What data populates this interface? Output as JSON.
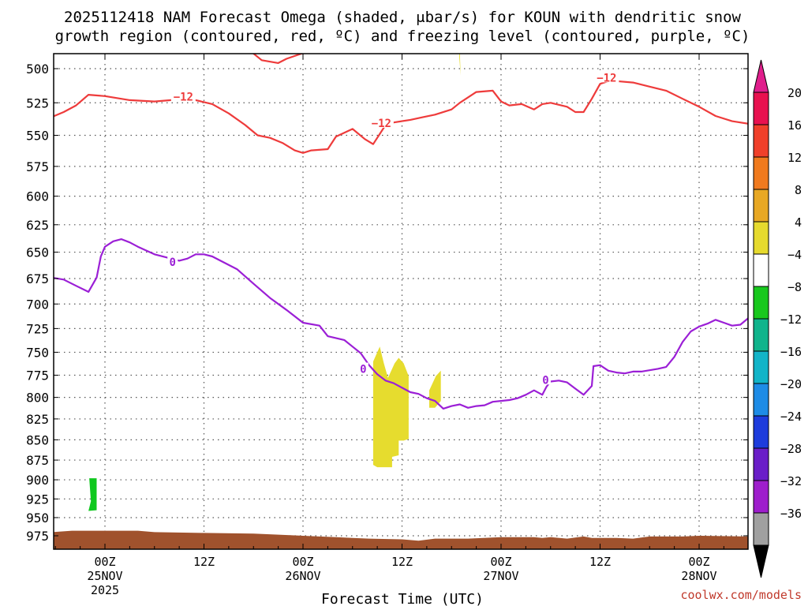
{
  "chart_data": {
    "type": "time-height contour",
    "title_lines": [
      "2025112418 NAM Forecast Omega (shaded, μbar/s) for KOUN with dendritic snow",
      "growth region (contoured, red, ºC) and freezing level (contoured, purple, ºC)"
    ],
    "xlabel": "Forecast Time (UTC)",
    "credit": "coolwx.com/models",
    "x_range_hours": [
      -6.5,
      78
    ],
    "y_range_hpa": [
      485,
      990
    ],
    "y_ticks": [
      {
        "v": 500,
        "label": "500"
      },
      {
        "v": 525,
        "label": "525"
      },
      {
        "v": 550,
        "label": "550"
      },
      {
        "v": 575,
        "label": "575"
      },
      {
        "v": 600,
        "label": "600"
      },
      {
        "v": 625,
        "label": "625"
      },
      {
        "v": 650,
        "label": "650"
      },
      {
        "v": 675,
        "label": "675"
      },
      {
        "v": 700,
        "label": "700"
      },
      {
        "v": 725,
        "label": "725"
      },
      {
        "v": 750,
        "label": "750"
      },
      {
        "v": 775,
        "label": "775"
      },
      {
        "v": 800,
        "label": "800"
      },
      {
        "v": 825,
        "label": "825"
      },
      {
        "v": 850,
        "label": "850"
      },
      {
        "v": 875,
        "label": "875"
      },
      {
        "v": 900,
        "label": "900"
      },
      {
        "v": 925,
        "label": "925"
      },
      {
        "v": 950,
        "label": "950"
      },
      {
        "v": 975,
        "label": "975"
      }
    ],
    "x_ticks": [
      {
        "t": 0,
        "label": "00Z",
        "date": "25NOV",
        "year": "2025"
      },
      {
        "t": 12,
        "label": "12Z",
        "date": "",
        "year": ""
      },
      {
        "t": 24,
        "label": "00Z",
        "date": "26NOV",
        "year": ""
      },
      {
        "t": 36,
        "label": "12Z",
        "date": "",
        "year": ""
      },
      {
        "t": 48,
        "label": "00Z",
        "date": "27NOV",
        "year": ""
      },
      {
        "t": 60,
        "label": "12Z",
        "date": "",
        "year": ""
      },
      {
        "t": 72,
        "label": "00Z",
        "date": "28NOV",
        "year": ""
      }
    ],
    "colorbar": {
      "levels": [
        -36,
        -32,
        -28,
        -24,
        -20,
        -16,
        -12,
        -8,
        -4,
        4,
        8,
        12,
        16,
        20
      ],
      "labels": [
        "20",
        "16",
        "12",
        "8",
        "4",
        "−4",
        "−8",
        "−12",
        "−16",
        "−20",
        "−24",
        "−28",
        "−32",
        "−36"
      ],
      "colors_top_to_bottom": [
        "#e8114f",
        "#f0402a",
        "#f07a1e",
        "#e8a824",
        "#e6da2e",
        "#ffffff",
        "#18c81e",
        "#10b48c",
        "#12b4c8",
        "#1e8ce6",
        "#1e3cdc",
        "#6a1ec8",
        "#9e1ecc",
        "#a0a0a0"
      ],
      "top_triangle": "#e01e8c",
      "bottom_triangle": "#000000"
    },
    "contours": [
      {
        "name": "dgz-upper",
        "level": "-12",
        "color": "#ee3b3b",
        "points": [
          [
            -6.5,
            536
          ],
          [
            -5,
            532
          ],
          [
            -3.5,
            527
          ],
          [
            -2,
            519
          ],
          [
            0,
            520
          ],
          [
            3,
            523
          ],
          [
            6,
            524
          ],
          [
            8,
            523
          ],
          [
            9,
            521
          ],
          [
            11,
            523
          ],
          [
            13,
            526
          ],
          [
            15,
            533
          ],
          [
            17,
            542
          ],
          [
            18.5,
            550
          ],
          [
            20,
            552
          ],
          [
            21.5,
            556
          ],
          [
            23,
            562
          ],
          [
            24,
            564
          ],
          [
            25,
            562
          ],
          [
            27,
            561
          ],
          [
            28,
            551
          ],
          [
            30,
            545
          ],
          [
            31.5,
            553
          ],
          [
            32.5,
            557
          ],
          [
            33,
            552
          ],
          [
            34,
            542
          ],
          [
            35,
            540
          ],
          [
            37,
            538
          ],
          [
            38.5,
            536
          ],
          [
            40,
            534
          ],
          [
            42,
            530
          ],
          [
            43,
            525
          ],
          [
            45,
            517
          ],
          [
            47,
            516
          ],
          [
            48,
            524
          ],
          [
            49,
            527
          ],
          [
            50.5,
            526
          ],
          [
            52,
            530
          ],
          [
            53,
            526
          ],
          [
            54,
            525
          ],
          [
            56,
            528
          ],
          [
            57,
            532
          ],
          [
            58,
            532
          ],
          [
            59,
            522
          ],
          [
            60,
            511
          ],
          [
            61,
            509
          ],
          [
            62,
            509
          ],
          [
            64,
            510
          ],
          [
            66,
            513
          ],
          [
            68,
            516
          ],
          [
            70,
            522
          ],
          [
            72,
            528
          ],
          [
            74,
            535
          ],
          [
            76,
            539
          ],
          [
            78,
            541
          ]
        ]
      },
      {
        "name": "dgz-top",
        "level": "-12",
        "color": "#ee3b3b",
        "points": [
          [
            17.5,
            487
          ],
          [
            19,
            494
          ],
          [
            21,
            496
          ],
          [
            22,
            493
          ],
          [
            24,
            489
          ],
          [
            27,
            489
          ],
          [
            30,
            487
          ]
        ]
      },
      {
        "name": "freezing-level",
        "level": "0",
        "color": "#9b1fd6",
        "points": [
          [
            -6.5,
            674
          ],
          [
            -5,
            676
          ],
          [
            -3.5,
            682
          ],
          [
            -2,
            688
          ],
          [
            -1,
            674
          ],
          [
            -0.5,
            654
          ],
          [
            0,
            645
          ],
          [
            1,
            640
          ],
          [
            2,
            638
          ],
          [
            3,
            641
          ],
          [
            4,
            645
          ],
          [
            6,
            652
          ],
          [
            8,
            656
          ],
          [
            9,
            658
          ],
          [
            10,
            656
          ],
          [
            11,
            652
          ],
          [
            12,
            652
          ],
          [
            13,
            654
          ],
          [
            14,
            658
          ],
          [
            16,
            666
          ],
          [
            18,
            680
          ],
          [
            20,
            694
          ],
          [
            22,
            706
          ],
          [
            24,
            719
          ],
          [
            26,
            722
          ],
          [
            27,
            733
          ],
          [
            29,
            737
          ],
          [
            30,
            744
          ],
          [
            31,
            751
          ],
          [
            32,
            764
          ],
          [
            33,
            774
          ],
          [
            34,
            781
          ],
          [
            35,
            784
          ],
          [
            36,
            789
          ],
          [
            37,
            794
          ],
          [
            38,
            796
          ],
          [
            39,
            801
          ],
          [
            40,
            804
          ],
          [
            41,
            813
          ],
          [
            42,
            810
          ],
          [
            43,
            808
          ],
          [
            44,
            812
          ],
          [
            45,
            810
          ],
          [
            46,
            809
          ],
          [
            47,
            805
          ],
          [
            49,
            803
          ],
          [
            50,
            801
          ],
          [
            51,
            797
          ],
          [
            52,
            792
          ],
          [
            53,
            797
          ],
          [
            53.5,
            788
          ],
          [
            54,
            782
          ],
          [
            55,
            781
          ],
          [
            56,
            783
          ],
          [
            57,
            790
          ],
          [
            58,
            797
          ],
          [
            59,
            787
          ],
          [
            59.2,
            765
          ],
          [
            60,
            764
          ],
          [
            61,
            770
          ],
          [
            62,
            772
          ],
          [
            63,
            773
          ],
          [
            64,
            771
          ],
          [
            65,
            771
          ],
          [
            67,
            768
          ],
          [
            68,
            766
          ],
          [
            69,
            755
          ],
          [
            70,
            739
          ],
          [
            71,
            728
          ],
          [
            72,
            723
          ],
          [
            73,
            720
          ],
          [
            74,
            716
          ],
          [
            75,
            719
          ],
          [
            76,
            722
          ],
          [
            77,
            721
          ],
          [
            78,
            714
          ]
        ]
      }
    ],
    "contour_labels": [
      {
        "text": "−12",
        "t": 9.5,
        "p": 521,
        "color": "#ee3b3b"
      },
      {
        "text": "−12",
        "t": 33.5,
        "p": 541,
        "color": "#ee3b3b"
      },
      {
        "text": "−12",
        "t": 60.8,
        "p": 507,
        "color": "#ee3b3b"
      },
      {
        "text": "0",
        "t": 8.2,
        "p": 660,
        "color": "#9b1fd6"
      },
      {
        "text": "0",
        "t": 31.3,
        "p": 769,
        "color": "#9b1fd6"
      },
      {
        "text": "0",
        "t": 53.4,
        "p": 781,
        "color": "#9b1fd6"
      }
    ],
    "shaded_regions": [
      {
        "name": "omega-4-to-8",
        "level": "4 to 8",
        "color": "#e6dc2e",
        "points": [
          [
            32.5,
            760
          ],
          [
            33.3,
            744
          ],
          [
            33.8,
            762
          ],
          [
            34.3,
            778
          ],
          [
            35.1,
            762
          ],
          [
            35.6,
            756
          ],
          [
            36.2,
            762
          ],
          [
            36.8,
            776
          ],
          [
            36.8,
            849
          ],
          [
            36.2,
            851
          ],
          [
            35.6,
            851
          ],
          [
            35.6,
            869
          ],
          [
            34.8,
            871
          ],
          [
            34.8,
            884
          ],
          [
            33.0,
            884
          ],
          [
            32.5,
            881
          ]
        ]
      },
      {
        "name": "omega-4-to-8-b",
        "level": "4 to 8",
        "color": "#e6dc2e",
        "points": [
          [
            39.3,
            792
          ],
          [
            40.1,
            776
          ],
          [
            40.7,
            770
          ],
          [
            40.7,
            804
          ],
          [
            40.0,
            812
          ],
          [
            39.3,
            812
          ]
        ]
      },
      {
        "name": "omega-4-to-8-c",
        "level": "4 to 8",
        "color": "#e6dc2e",
        "points": [
          [
            42.9,
            485
          ],
          [
            43.0,
            488
          ],
          [
            43.1,
            505
          ],
          [
            42.95,
            493
          ]
        ]
      },
      {
        "name": "omega-minus-4-to-minus-8",
        "level": "-4 to -8",
        "color": "#0fc81e",
        "points": [
          [
            -1.9,
            898
          ],
          [
            -1.0,
            898
          ],
          [
            -1.0,
            940
          ],
          [
            -2.0,
            941
          ],
          [
            -1.7,
            928
          ]
        ]
      }
    ],
    "terrain": {
      "name": "surface",
      "color": "#a0522d",
      "points": [
        [
          -6.5,
          970
        ],
        [
          -4,
          968
        ],
        [
          0,
          968
        ],
        [
          4,
          968
        ],
        [
          6,
          970
        ],
        [
          12,
          971
        ],
        [
          18,
          972
        ],
        [
          24,
          975
        ],
        [
          26,
          976
        ],
        [
          28,
          977
        ],
        [
          30,
          978
        ],
        [
          32,
          979
        ],
        [
          36,
          980
        ],
        [
          38,
          982
        ],
        [
          40,
          979
        ],
        [
          44,
          979
        ],
        [
          48,
          977
        ],
        [
          52,
          977
        ],
        [
          53,
          978
        ],
        [
          54,
          977
        ],
        [
          56,
          979
        ],
        [
          58,
          976
        ],
        [
          59,
          978
        ],
        [
          62,
          978
        ],
        [
          64,
          979
        ],
        [
          66,
          976
        ],
        [
          70,
          976
        ],
        [
          72,
          975
        ],
        [
          78,
          976
        ]
      ]
    }
  }
}
